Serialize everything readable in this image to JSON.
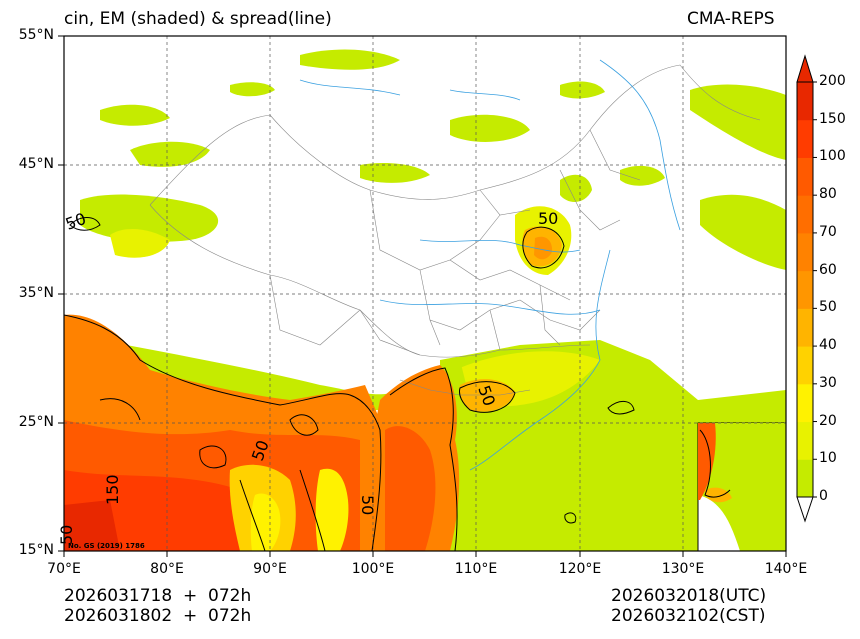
{
  "title_left": "cin, EM (shaded) & spread(line)",
  "title_right": "CMA-REPS",
  "lat_labels": [
    "55°N",
    "45°N",
    "35°N",
    "25°N",
    "15°N"
  ],
  "lon_labels": [
    "70°E",
    "80°E",
    "90°E",
    "100°E",
    "110°E",
    "120°E",
    "130°E",
    "140°E"
  ],
  "colorbar": {
    "labels": [
      "0",
      "10",
      "20",
      "30",
      "40",
      "50",
      "60",
      "70",
      "80",
      "100",
      "150",
      "200"
    ],
    "colors": [
      "#c5eb00",
      "#e8f200",
      "#fff200",
      "#ffd200",
      "#ffb400",
      "#ff9600",
      "#ff8200",
      "#ff6e00",
      "#ff5a00",
      "#ff3c00",
      "#e82800"
    ]
  },
  "contour_labels": [
    "50",
    "50",
    "50",
    "50",
    "50",
    "150",
    "50"
  ],
  "footer": {
    "init_utc": "2026031718  +  072h",
    "init_cst": "2026031802  +  072h",
    "valid_utc": "2026032018(UTC)",
    "valid_cst": "2026032102(CST)"
  },
  "map_note": "No. GS (2019) 1786"
}
